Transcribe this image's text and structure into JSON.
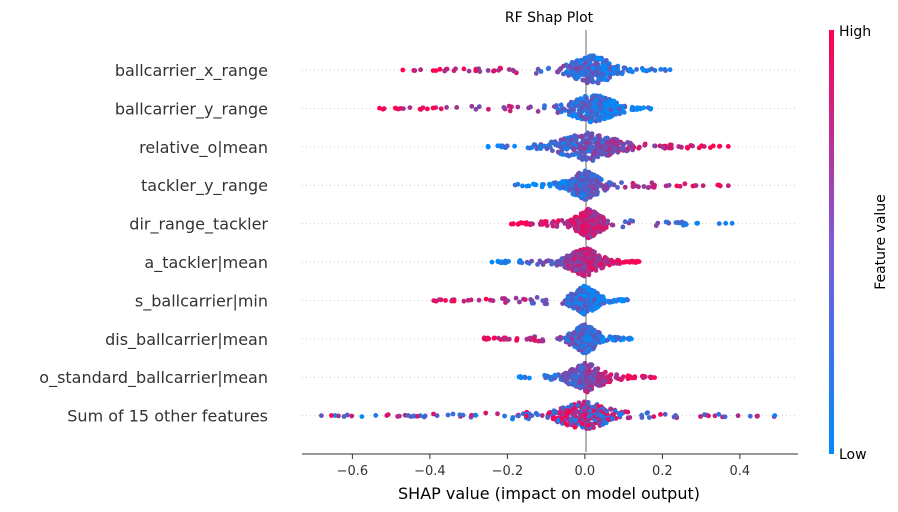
{
  "chart_data": {
    "type": "scatter",
    "subtype": "shap-beeswarm",
    "title": "RF Shap Plot",
    "xlabel": "SHAP value (impact on model output)",
    "xlim": [
      -0.73,
      0.55
    ],
    "x_ticks": [
      -0.6,
      -0.4,
      -0.2,
      0.0,
      0.2,
      0.4
    ],
    "x_tick_labels": [
      "−0.6",
      "−0.4",
      "−0.2",
      "0.0",
      "0.2",
      "0.4"
    ],
    "colorbar": {
      "label": "Feature value",
      "high": "High",
      "low": "Low",
      "high_color": "#ff0052",
      "low_color": "#008bfb"
    },
    "features": [
      {
        "name": "ballcarrier_x_range",
        "min": -0.47,
        "max": 0.22,
        "core": [
          -0.05,
          0.09
        ],
        "left": "high",
        "right": "low"
      },
      {
        "name": "ballcarrier_y_range",
        "min": -0.53,
        "max": 0.17,
        "core": [
          -0.05,
          0.09
        ],
        "left": "high",
        "right": "low"
      },
      {
        "name": "relative_o|mean",
        "min": -0.25,
        "max": 0.37,
        "core": [
          -0.08,
          0.1
        ],
        "left": "low",
        "right": "high"
      },
      {
        "name": "tackler_y_range",
        "min": -0.18,
        "max": 0.37,
        "core": [
          -0.05,
          0.05
        ],
        "left": "low",
        "right": "high"
      },
      {
        "name": "dir_range_tackler",
        "min": -0.19,
        "max": 0.38,
        "core": [
          -0.03,
          0.05
        ],
        "left": "high",
        "right": "low"
      },
      {
        "name": "a_tackler|mean",
        "min": -0.24,
        "max": 0.14,
        "core": [
          -0.05,
          0.05
        ],
        "left": "low",
        "right": "high"
      },
      {
        "name": "s_ballcarrier|min",
        "min": -0.39,
        "max": 0.11,
        "core": [
          -0.04,
          0.04
        ],
        "left": "high",
        "right": "low"
      },
      {
        "name": "dis_ballcarrier|mean",
        "min": -0.26,
        "max": 0.12,
        "core": [
          -0.04,
          0.04
        ],
        "left": "high",
        "right": "low"
      },
      {
        "name": "o_standard_ballcarrier|mean",
        "min": -0.17,
        "max": 0.18,
        "core": [
          -0.05,
          0.06
        ],
        "left": "low",
        "right": "high"
      },
      {
        "name": "Sum of 15 other features",
        "min": -0.68,
        "max": 0.49,
        "core": [
          -0.08,
          0.08
        ],
        "left": "mixed",
        "right": "mixed"
      }
    ]
  }
}
